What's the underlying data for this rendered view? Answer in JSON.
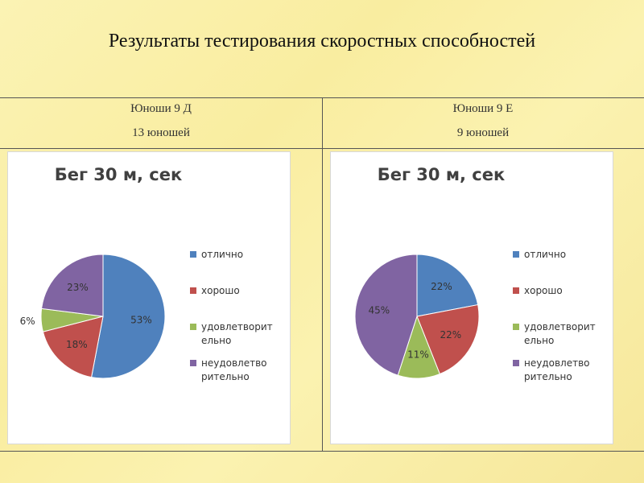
{
  "slide": {
    "title": "Результаты тестирования скоростных  способностей"
  },
  "columns": [
    {
      "group": "Юноши 9 Д",
      "count": "13 юношей"
    },
    {
      "group": "Юноши 9 Е",
      "count": "9 юношей"
    }
  ],
  "chart_data": [
    {
      "type": "pie",
      "title": "Бег 30 м, сек",
      "categories": [
        "отлично",
        "хорошо",
        "удовлетворительно",
        "неудовлетворительно"
      ],
      "legend_lines": [
        [
          "отлично"
        ],
        [
          "хорошо"
        ],
        [
          "удовлетворит",
          "ельно"
        ],
        [
          "неудовлетво",
          "рительно"
        ]
      ],
      "values": [
        53,
        18,
        6,
        23
      ],
      "labels": [
        "53%",
        "18%",
        "6%",
        "23%"
      ],
      "colors": [
        "#4f81bd",
        "#c0504d",
        "#9bbb59",
        "#8064a2"
      ],
      "legend_position": "right"
    },
    {
      "type": "pie",
      "title": "Бег 30 м, сек",
      "categories": [
        "отлично",
        "хорошо",
        "удовлетворительно",
        "неудовлетворительно"
      ],
      "legend_lines": [
        [
          "отлично"
        ],
        [
          "хорошо"
        ],
        [
          "удовлетворит",
          "ельно"
        ],
        [
          "неудовлетво",
          "рительно"
        ]
      ],
      "values": [
        22,
        22,
        11,
        45
      ],
      "labels": [
        "22%",
        "22%",
        "11%",
        "45%"
      ],
      "colors": [
        "#4f81bd",
        "#c0504d",
        "#9bbb59",
        "#8064a2"
      ],
      "legend_position": "right"
    }
  ]
}
